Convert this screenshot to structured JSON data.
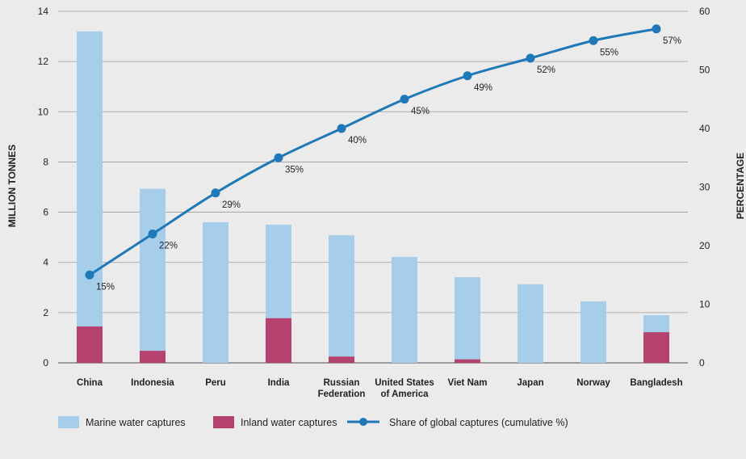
{
  "chart_data": {
    "type": "bar",
    "stacked": true,
    "categories": [
      [
        "China"
      ],
      [
        "Indonesia"
      ],
      [
        "Peru"
      ],
      [
        "India"
      ],
      [
        "Russian",
        "Federation"
      ],
      [
        "United States",
        "of America"
      ],
      [
        "Viet Nam"
      ],
      [
        "Japan"
      ],
      [
        "Norway"
      ],
      [
        "Bangladesh"
      ]
    ],
    "series": [
      {
        "name": "Inland water captures",
        "type": "bar",
        "axis": "left",
        "color": "#b5416e",
        "values": [
          1.45,
          0.48,
          0.0,
          1.78,
          0.25,
          0.0,
          0.14,
          0.0,
          0.0,
          1.22
        ]
      },
      {
        "name": "Marine water captures",
        "type": "bar",
        "axis": "left",
        "color": "#a6cdea",
        "values": [
          11.75,
          6.45,
          5.6,
          3.72,
          4.83,
          4.22,
          3.27,
          3.13,
          2.45,
          0.68
        ]
      },
      {
        "name": "Share of global captures (cumulative %)",
        "type": "line",
        "axis": "right",
        "color": "#1f78b8",
        "values": [
          15,
          22,
          29,
          35,
          40,
          45,
          49,
          52,
          55,
          57
        ],
        "labels": [
          "15%",
          "22%",
          "29%",
          "35%",
          "40%",
          "45%",
          "49%",
          "52%",
          "55%",
          "57%"
        ]
      }
    ],
    "ylabel": "MILLION TONNES",
    "ylim": [
      0,
      14
    ],
    "yticks": [
      0,
      2,
      4,
      6,
      8,
      10,
      12,
      14
    ],
    "y2label": "PERCENTAGE",
    "y2lim": [
      0,
      60
    ],
    "y2ticks": [
      0,
      10,
      20,
      30,
      40,
      50,
      60
    ],
    "grid": "horizontal",
    "legend": {
      "position": "bottom-left",
      "order": [
        "Marine water captures",
        "Inland water captures",
        "Share of global captures (cumulative %)"
      ]
    }
  }
}
